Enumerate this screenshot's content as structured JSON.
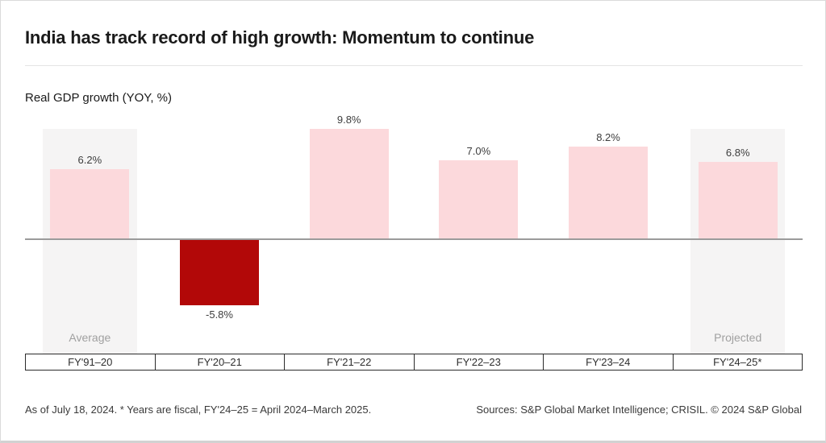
{
  "title": "India has track record of high growth: Momentum to continue",
  "subtitle": "Real GDP growth (YOY, %)",
  "footer": {
    "left": "As of July 18, 2024. * Years are fiscal, FY'24–25 = April 2024–March 2025.",
    "right": "Sources: S&P Global Market Intelligence; CRISIL. © 2024 S&P Global"
  },
  "colors": {
    "positive_bar": "#fcd9dc",
    "negative_bar": "#b20808",
    "highlight_bg": "#f5f4f4",
    "zero_line": "#9b9b9b",
    "axis_border": "#2b2b2b",
    "note_text": "#a0a0a0"
  },
  "chart_data": {
    "type": "bar",
    "title": "Real GDP growth (YOY, %)",
    "categories": [
      "FY'91–20",
      "FY'20–21",
      "FY'21–22",
      "FY'22–23",
      "FY'23–24",
      "FY'24–25*"
    ],
    "values": [
      6.2,
      -5.8,
      9.8,
      7.0,
      8.2,
      6.8
    ],
    "value_labels": [
      "6.2%",
      "-5.8%",
      "9.8%",
      "7.0%",
      "8.2%",
      "6.8%"
    ],
    "column_notes": [
      "Average",
      null,
      null,
      null,
      null,
      "Projected"
    ],
    "highlighted_columns": [
      0,
      5
    ],
    "xlabel": "",
    "ylabel": "",
    "ylim": [
      -7,
      10.2
    ],
    "grid": false,
    "legend": false,
    "baseline": 0
  }
}
